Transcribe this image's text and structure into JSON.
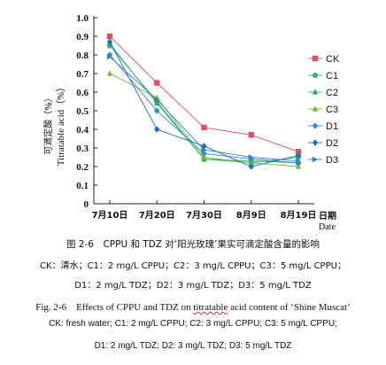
{
  "chart_data": {
    "type": "line",
    "ylabel_cn": "可滴定酸（%）",
    "ylabel_en": "Titratable acid（%）",
    "xlabel_cn": "日期",
    "xlabel_en": "Date",
    "categories": [
      "7月10日",
      "7月20日",
      "7月30日",
      "8月9日",
      "8月19日"
    ],
    "ylim": [
      0,
      1.0
    ],
    "yticks": [
      "0",
      "0.1",
      "0.2",
      "0.3",
      "0.4",
      "0.5",
      "0.6",
      "0.7",
      "0.8",
      "0.9",
      "1.0"
    ],
    "legend_position": "right",
    "series": [
      {
        "name": "CK",
        "color": "#e0506a",
        "marker": "square",
        "values": [
          0.9,
          0.65,
          0.41,
          0.37,
          0.28
        ]
      },
      {
        "name": "C1",
        "color": "#3cb371",
        "marker": "circle",
        "values": [
          0.85,
          0.55,
          0.24,
          0.22,
          0.25
        ]
      },
      {
        "name": "C2",
        "color": "#2eaa60",
        "marker": "triangle",
        "values": [
          0.86,
          0.54,
          0.24,
          0.23,
          0.22
        ]
      },
      {
        "name": "C3",
        "color": "#7ab83c",
        "marker": "triangle",
        "values": [
          0.7,
          0.57,
          0.25,
          0.22,
          0.2
        ]
      },
      {
        "name": "D1",
        "color": "#2b8cc4",
        "marker": "diamond",
        "values": [
          0.8,
          0.5,
          0.27,
          0.24,
          0.22
        ]
      },
      {
        "name": "D2",
        "color": "#1f6fb8",
        "marker": "diamond",
        "values": [
          0.87,
          0.4,
          0.31,
          0.2,
          0.26
        ]
      },
      {
        "name": "D3",
        "color": "#3a7fc0",
        "marker": "arrow",
        "values": [
          0.79,
          0.56,
          0.29,
          0.25,
          0.23
        ]
      }
    ]
  },
  "caption": {
    "cn_title": "图 2-6　CPPU 和 TDZ 对‘阳光玫瑰’果实可滴定酸含量的影响",
    "cn_line1": "CK：清水；C1：2 mg/L CPPU；C2：3 mg/L CPPU；C3：5 mg/L CPPU；",
    "cn_line2": "D1：2 mg/L TDZ；D2：3 mg/L TDZ；D3：5 mg/L TDZ",
    "en_title_prefix": "Fig. 2-6　Effects of CPPU and TDZ on ",
    "en_title_word": "titratable",
    "en_title_suffix": " acid content of ‘Shine Muscat’",
    "en_line1": "CK: fresh water; C1: 2 mg/L CPPU; C2: 3 mg/L CPPU; C3: 5 mg/L CPPU;",
    "en_line2": "D1: 2 mg/L TDZ; D2: 3 mg/L TDZ; D3: 5 mg/L TDZ"
  }
}
